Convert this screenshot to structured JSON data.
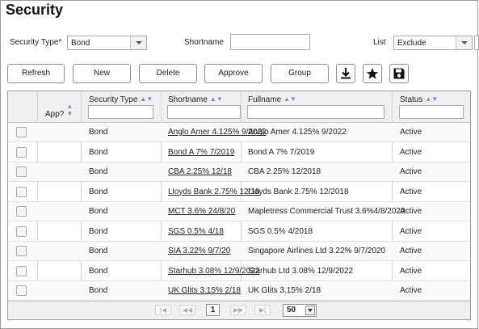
{
  "page": {
    "title": "Security"
  },
  "filters": {
    "security_type_label": "Security Type*",
    "security_type_value": "Bond",
    "shortname_label": "Shortname",
    "shortname_value": "",
    "list_label": "List",
    "list_value": "Exclude"
  },
  "toolbar": {
    "refresh": "Refresh",
    "new": "New",
    "delete": "Delete",
    "approve": "Approve",
    "group": "Group",
    "download_icon": "download-icon",
    "star_icon": "star-icon",
    "save_icon": "save-icon"
  },
  "table": {
    "columns": {
      "app": "App?",
      "security_type": "Security Type",
      "shortname": "Shortname",
      "fullname": "Fullname",
      "status": "Status"
    },
    "rows": [
      {
        "type": "Bond",
        "shortname": "Anglo Amer 4.125% 9/2022",
        "fullname": "Anglo Amer 4.125% 9/2022",
        "status": "Active"
      },
      {
        "type": "Bond",
        "shortname": "Bond A 7% 7/2019",
        "fullname": "Bond A 7% 7/2019",
        "status": "Active"
      },
      {
        "type": "Bond",
        "shortname": "CBA 2.25% 12/18",
        "fullname": "CBA 2.25% 12/2018",
        "status": "Active"
      },
      {
        "type": "Bond",
        "shortname": "Lloyds Bank 2.75% 12/18",
        "fullname": "Lloyds Bank 2.75% 12/2018",
        "status": "Active"
      },
      {
        "type": "Bond",
        "shortname": "MCT 3.6% 24/8/20",
        "fullname": "Mapletress Commercial Trust 3.6%4/8/2020",
        "status": "Active"
      },
      {
        "type": "Bond",
        "shortname": "SGS 0.5% 4/18",
        "fullname": "SGS 0.5% 4/2018",
        "status": "Active"
      },
      {
        "type": "Bond",
        "shortname": "SIA 3.22% 9/7/20",
        "fullname": "Singapore Airlines Ltd 3.22% 9/7/2020",
        "status": "Active"
      },
      {
        "type": "Bond",
        "shortname": "Starhub 3.08% 12/9/2022",
        "fullname": "Starhub Ltd 3.08% 12/9/2022",
        "status": "Active"
      },
      {
        "type": "Bond",
        "shortname": "UK Glits 3.15% 2/18",
        "fullname": "UK Glits 3.15% 2/18",
        "status": "Active"
      }
    ]
  },
  "pager": {
    "first": "|◀",
    "prev": "◀◀",
    "current_page": "1",
    "next": "▶▶",
    "last": "▶|",
    "page_size": "50"
  },
  "colors": {
    "sort_arrow": "#6a8fd0",
    "border": "#9a9a9a",
    "header_bg": "#f0f0f0"
  }
}
